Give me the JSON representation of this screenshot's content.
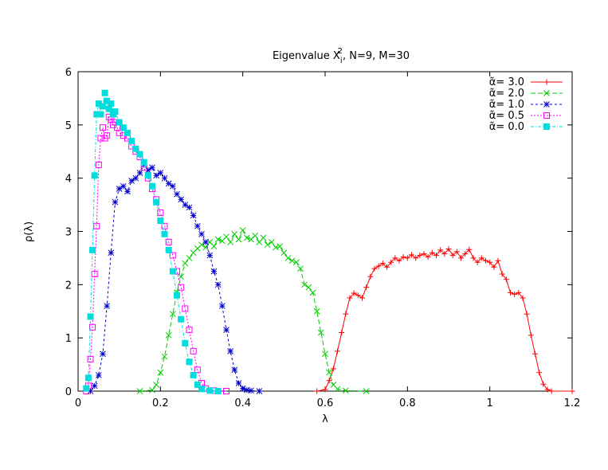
{
  "chart_data": {
    "type": "line",
    "title": {
      "prefix": "Eigenvalue X",
      "sub": "i",
      "sup": "2",
      "suffix": ", N=9, M=30"
    },
    "xlabel": "λ",
    "ylabel": "ρ(λ)",
    "xlim": [
      0,
      1.2
    ],
    "ylim": [
      0,
      6
    ],
    "xticks": [
      0,
      0.2,
      0.4,
      0.6,
      0.8,
      1,
      1.2
    ],
    "xtick_labels": [
      "0",
      "0.2",
      "0.4",
      "0.6",
      "0.8",
      "1",
      "1.2"
    ],
    "yticks": [
      0,
      1,
      2,
      3,
      4,
      5,
      6
    ],
    "ytick_labels": [
      "0",
      "1",
      "2",
      "3",
      "4",
      "5",
      "6"
    ],
    "grid": false,
    "legend_position": "top-right",
    "series": [
      {
        "name": "α̃= 3.0",
        "color": "#ff0000",
        "marker": "plus",
        "dash": "",
        "points": [
          [
            0.58,
            0
          ],
          [
            0.6,
            0.03
          ],
          [
            0.61,
            0.2
          ],
          [
            0.62,
            0.42
          ],
          [
            0.63,
            0.75
          ],
          [
            0.64,
            1.1
          ],
          [
            0.65,
            1.45
          ],
          [
            0.66,
            1.75
          ],
          [
            0.67,
            1.84
          ],
          [
            0.68,
            1.8
          ],
          [
            0.69,
            1.75
          ],
          [
            0.7,
            1.95
          ],
          [
            0.71,
            2.15
          ],
          [
            0.72,
            2.3
          ],
          [
            0.73,
            2.35
          ],
          [
            0.74,
            2.4
          ],
          [
            0.75,
            2.33
          ],
          [
            0.76,
            2.42
          ],
          [
            0.77,
            2.5
          ],
          [
            0.78,
            2.45
          ],
          [
            0.79,
            2.52
          ],
          [
            0.8,
            2.5
          ],
          [
            0.81,
            2.56
          ],
          [
            0.82,
            2.5
          ],
          [
            0.83,
            2.55
          ],
          [
            0.84,
            2.58
          ],
          [
            0.85,
            2.52
          ],
          [
            0.86,
            2.6
          ],
          [
            0.87,
            2.55
          ],
          [
            0.88,
            2.65
          ],
          [
            0.89,
            2.58
          ],
          [
            0.9,
            2.67
          ],
          [
            0.91,
            2.55
          ],
          [
            0.92,
            2.62
          ],
          [
            0.93,
            2.5
          ],
          [
            0.94,
            2.58
          ],
          [
            0.95,
            2.66
          ],
          [
            0.96,
            2.5
          ],
          [
            0.97,
            2.42
          ],
          [
            0.98,
            2.5
          ],
          [
            0.99,
            2.45
          ],
          [
            1.0,
            2.42
          ],
          [
            1.01,
            2.33
          ],
          [
            1.02,
            2.45
          ],
          [
            1.03,
            2.2
          ],
          [
            1.04,
            2.1
          ],
          [
            1.05,
            1.85
          ],
          [
            1.06,
            1.82
          ],
          [
            1.07,
            1.85
          ],
          [
            1.08,
            1.75
          ],
          [
            1.09,
            1.45
          ],
          [
            1.1,
            1.05
          ],
          [
            1.11,
            0.7
          ],
          [
            1.12,
            0.35
          ],
          [
            1.13,
            0.13
          ],
          [
            1.14,
            0.03
          ],
          [
            1.15,
            0
          ],
          [
            1.2,
            0
          ]
        ]
      },
      {
        "name": "α̃= 2.0",
        "color": "#00cc00",
        "marker": "x",
        "dash": "6,3",
        "points": [
          [
            0.15,
            0
          ],
          [
            0.18,
            0.02
          ],
          [
            0.19,
            0.12
          ],
          [
            0.2,
            0.35
          ],
          [
            0.21,
            0.65
          ],
          [
            0.22,
            1.05
          ],
          [
            0.23,
            1.45
          ],
          [
            0.24,
            1.85
          ],
          [
            0.25,
            2.15
          ],
          [
            0.26,
            2.4
          ],
          [
            0.27,
            2.5
          ],
          [
            0.28,
            2.6
          ],
          [
            0.29,
            2.68
          ],
          [
            0.3,
            2.75
          ],
          [
            0.31,
            2.7
          ],
          [
            0.32,
            2.8
          ],
          [
            0.33,
            2.72
          ],
          [
            0.34,
            2.85
          ],
          [
            0.35,
            2.82
          ],
          [
            0.36,
            2.9
          ],
          [
            0.37,
            2.8
          ],
          [
            0.38,
            2.95
          ],
          [
            0.39,
            2.85
          ],
          [
            0.4,
            3.02
          ],
          [
            0.41,
            2.88
          ],
          [
            0.42,
            2.85
          ],
          [
            0.43,
            2.92
          ],
          [
            0.44,
            2.8
          ],
          [
            0.45,
            2.88
          ],
          [
            0.46,
            2.75
          ],
          [
            0.47,
            2.8
          ],
          [
            0.48,
            2.7
          ],
          [
            0.49,
            2.72
          ],
          [
            0.5,
            2.6
          ],
          [
            0.51,
            2.5
          ],
          [
            0.52,
            2.45
          ],
          [
            0.53,
            2.42
          ],
          [
            0.54,
            2.3
          ],
          [
            0.55,
            2.0
          ],
          [
            0.56,
            1.95
          ],
          [
            0.57,
            1.85
          ],
          [
            0.58,
            1.5
          ],
          [
            0.59,
            1.1
          ],
          [
            0.6,
            0.7
          ],
          [
            0.61,
            0.35
          ],
          [
            0.62,
            0.12
          ],
          [
            0.63,
            0.04
          ],
          [
            0.65,
            0.01
          ],
          [
            0.7,
            0
          ]
        ]
      },
      {
        "name": "α̃= 1.0",
        "color": "#0000cc",
        "marker": "star",
        "dash": "3,3",
        "points": [
          [
            0.03,
            0
          ],
          [
            0.04,
            0.1
          ],
          [
            0.05,
            0.3
          ],
          [
            0.06,
            0.7
          ],
          [
            0.07,
            1.6
          ],
          [
            0.08,
            2.6
          ],
          [
            0.09,
            3.55
          ],
          [
            0.1,
            3.8
          ],
          [
            0.11,
            3.85
          ],
          [
            0.12,
            3.75
          ],
          [
            0.13,
            3.95
          ],
          [
            0.14,
            4.0
          ],
          [
            0.15,
            4.1
          ],
          [
            0.16,
            4.25
          ],
          [
            0.17,
            4.15
          ],
          [
            0.18,
            4.2
          ],
          [
            0.19,
            4.05
          ],
          [
            0.2,
            4.1
          ],
          [
            0.21,
            4.0
          ],
          [
            0.22,
            3.9
          ],
          [
            0.23,
            3.85
          ],
          [
            0.24,
            3.7
          ],
          [
            0.25,
            3.6
          ],
          [
            0.26,
            3.5
          ],
          [
            0.27,
            3.45
          ],
          [
            0.28,
            3.3
          ],
          [
            0.29,
            3.1
          ],
          [
            0.3,
            2.95
          ],
          [
            0.31,
            2.8
          ],
          [
            0.32,
            2.55
          ],
          [
            0.33,
            2.25
          ],
          [
            0.34,
            2.0
          ],
          [
            0.35,
            1.6
          ],
          [
            0.36,
            1.15
          ],
          [
            0.37,
            0.75
          ],
          [
            0.38,
            0.4
          ],
          [
            0.39,
            0.15
          ],
          [
            0.4,
            0.05
          ],
          [
            0.41,
            0.02
          ],
          [
            0.42,
            0.01
          ],
          [
            0.44,
            0
          ]
        ]
      },
      {
        "name": "α̃= 0.5",
        "color": "#ff00ff",
        "marker": "square",
        "dash": "2,2",
        "points": [
          [
            0.02,
            0
          ],
          [
            0.025,
            0.1
          ],
          [
            0.03,
            0.6
          ],
          [
            0.035,
            1.2
          ],
          [
            0.04,
            2.2
          ],
          [
            0.045,
            3.1
          ],
          [
            0.05,
            4.25
          ],
          [
            0.055,
            4.75
          ],
          [
            0.06,
            4.95
          ],
          [
            0.065,
            4.75
          ],
          [
            0.07,
            4.8
          ],
          [
            0.075,
            5.15
          ],
          [
            0.08,
            5.1
          ],
          [
            0.085,
            5.0
          ],
          [
            0.09,
            5.05
          ],
          [
            0.095,
            4.95
          ],
          [
            0.1,
            4.85
          ],
          [
            0.11,
            4.8
          ],
          [
            0.12,
            4.75
          ],
          [
            0.13,
            4.6
          ],
          [
            0.14,
            4.5
          ],
          [
            0.15,
            4.4
          ],
          [
            0.16,
            4.2
          ],
          [
            0.17,
            4.0
          ],
          [
            0.18,
            3.8
          ],
          [
            0.19,
            3.6
          ],
          [
            0.2,
            3.35
          ],
          [
            0.21,
            3.1
          ],
          [
            0.22,
            2.8
          ],
          [
            0.23,
            2.55
          ],
          [
            0.24,
            2.25
          ],
          [
            0.25,
            1.95
          ],
          [
            0.26,
            1.55
          ],
          [
            0.27,
            1.15
          ],
          [
            0.28,
            0.75
          ],
          [
            0.29,
            0.4
          ],
          [
            0.3,
            0.15
          ],
          [
            0.31,
            0.05
          ],
          [
            0.33,
            0.01
          ],
          [
            0.36,
            0
          ]
        ]
      },
      {
        "name": "α̃= 0.0",
        "color": "#00dddd",
        "marker": "filled-square",
        "dash": "4,2,1,2",
        "points": [
          [
            0.02,
            0.05
          ],
          [
            0.025,
            0.25
          ],
          [
            0.03,
            1.4
          ],
          [
            0.035,
            2.65
          ],
          [
            0.04,
            4.05
          ],
          [
            0.045,
            5.2
          ],
          [
            0.05,
            5.4
          ],
          [
            0.055,
            5.2
          ],
          [
            0.06,
            5.35
          ],
          [
            0.065,
            5.6
          ],
          [
            0.07,
            5.45
          ],
          [
            0.075,
            5.3
          ],
          [
            0.08,
            5.4
          ],
          [
            0.085,
            5.2
          ],
          [
            0.09,
            5.25
          ],
          [
            0.1,
            5.05
          ],
          [
            0.11,
            4.95
          ],
          [
            0.12,
            4.85
          ],
          [
            0.13,
            4.7
          ],
          [
            0.14,
            4.55
          ],
          [
            0.15,
            4.45
          ],
          [
            0.16,
            4.3
          ],
          [
            0.17,
            4.05
          ],
          [
            0.18,
            3.85
          ],
          [
            0.19,
            3.55
          ],
          [
            0.2,
            3.2
          ],
          [
            0.21,
            2.95
          ],
          [
            0.22,
            2.65
          ],
          [
            0.23,
            2.25
          ],
          [
            0.24,
            1.8
          ],
          [
            0.25,
            1.35
          ],
          [
            0.26,
            0.9
          ],
          [
            0.27,
            0.55
          ],
          [
            0.28,
            0.3
          ],
          [
            0.29,
            0.12
          ],
          [
            0.3,
            0.04
          ],
          [
            0.32,
            0.01
          ],
          [
            0.34,
            0
          ]
        ]
      }
    ]
  }
}
